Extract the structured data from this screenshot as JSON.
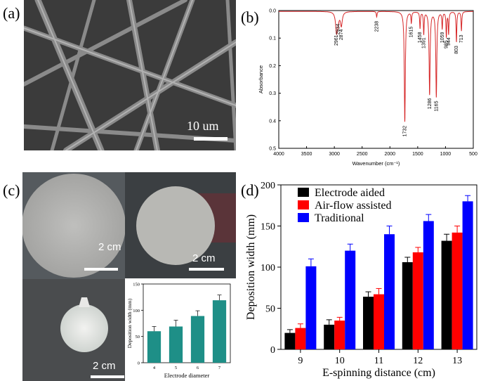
{
  "panels": {
    "a": {
      "label": "(a)",
      "scale_bar": "10 um"
    },
    "b": {
      "label": "(b)",
      "chart_data": {
        "type": "line",
        "xlabel": "Wavenumber (cm⁻¹)",
        "ylabel": "Absorbance",
        "xlim": [
          4000,
          500
        ],
        "ylim": [
          0.0,
          0.5
        ],
        "x_ticks": [
          4000,
          3500,
          3000,
          2500,
          2000,
          1500,
          1000,
          500
        ],
        "y_ticks": [
          "0.0",
          "0.1",
          "0.2",
          "0.3",
          "0.4",
          "0.5"
        ],
        "line_color": "#d62728",
        "peaks": [
          {
            "x": 2961,
            "y": 0.07,
            "label": "2961"
          },
          {
            "x": 2934,
            "y": 0.03,
            "label": "2934"
          },
          {
            "x": 2874,
            "y": 0.05,
            "label": "2874"
          },
          {
            "x": 2238,
            "y": 0.02,
            "label": "2238"
          },
          {
            "x": 1732,
            "y": 0.4,
            "label": "1732"
          },
          {
            "x": 1615,
            "y": 0.04,
            "label": "1615"
          },
          {
            "x": 1458,
            "y": 0.06,
            "label": "1458"
          },
          {
            "x": 1391,
            "y": 0.08,
            "label": "1391"
          },
          {
            "x": 1286,
            "y": 0.3,
            "label": "1286"
          },
          {
            "x": 1165,
            "y": 0.31,
            "label": "1165"
          },
          {
            "x": 1059,
            "y": 0.06,
            "label": "1059"
          },
          {
            "x": 985,
            "y": 0.09,
            "label": "985"
          },
          {
            "x": 944,
            "y": 0.08,
            "label": "944"
          },
          {
            "x": 803,
            "y": 0.11,
            "label": "803"
          },
          {
            "x": 713,
            "y": 0.07,
            "label": "713"
          }
        ]
      }
    },
    "c": {
      "label": "(c)",
      "scale_bars": [
        "2 cm",
        "2 cm",
        "2 cm"
      ],
      "chart_data": {
        "type": "bar",
        "xlabel": "Electrode diameter",
        "ylabel": "Deposition width (mm)",
        "categories": [
          "4",
          "5",
          "6",
          "7"
        ],
        "values": [
          60,
          69,
          89,
          119
        ],
        "errors": [
          9,
          12,
          10,
          10
        ],
        "ylim": [
          0,
          150
        ],
        "y_ticks": [
          0,
          50,
          100,
          150
        ],
        "bar_color": "#1e8f87"
      }
    },
    "d": {
      "label": "(d)",
      "chart_data": {
        "type": "bar",
        "xlabel": "E-spinning distance (cm)",
        "ylabel": "Deposition width (mm)",
        "categories": [
          "9",
          "10",
          "11",
          "12",
          "13"
        ],
        "ylim": [
          0,
          200
        ],
        "y_ticks": [
          0,
          50,
          100,
          150,
          200
        ],
        "legend_position": "top-left",
        "series": [
          {
            "name": "Electrode aided",
            "color": "#000000",
            "values": [
              20,
              30,
              64,
              106,
              132
            ],
            "errors": [
              4,
              6,
              6,
              6,
              8
            ]
          },
          {
            "name": "Air-flow assisted",
            "color": "#ff0000",
            "values": [
              26,
              35,
              67,
              118,
              142
            ],
            "errors": [
              5,
              4,
              7,
              6,
              8
            ]
          },
          {
            "name": "Traditional",
            "color": "#0000ff",
            "values": [
              101,
              120,
              140,
              156,
              180
            ],
            "errors": [
              9,
              8,
              10,
              8,
              7
            ]
          }
        ]
      }
    }
  }
}
